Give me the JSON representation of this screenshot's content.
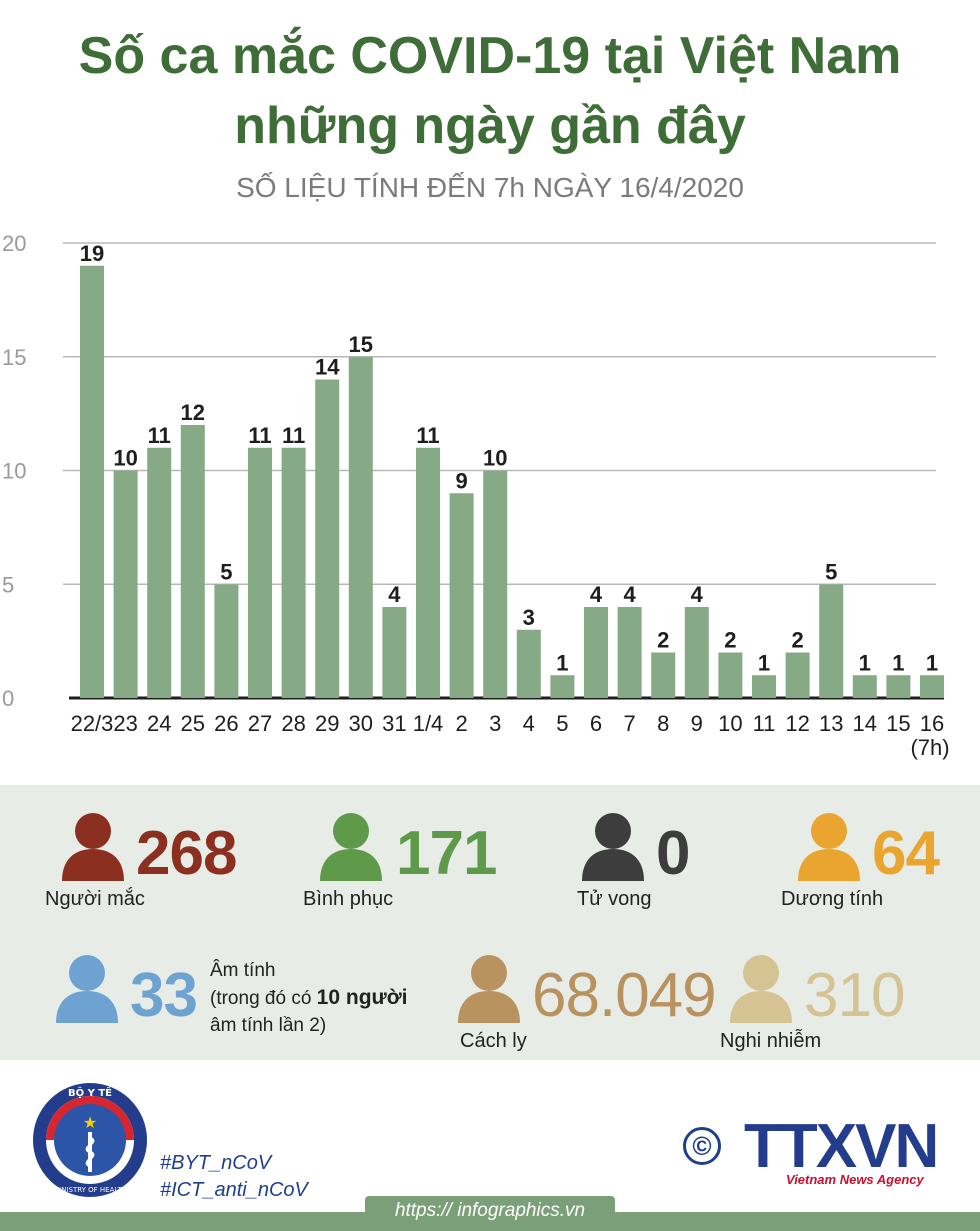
{
  "title_line1": "Số ca mắc COVID-19 tại Việt Nam",
  "title_line2": "những ngày gần đây",
  "subtitle": "SỐ LIỆU TÍNH ĐẾN 7h NGÀY 16/4/2020",
  "chart_data": {
    "type": "bar",
    "title": "Số ca mắc COVID-19 tại Việt Nam những ngày gần đây",
    "categories": [
      "22/3",
      "23",
      "24",
      "25",
      "26",
      "27",
      "28",
      "29",
      "30",
      "31",
      "1/4",
      "2",
      "3",
      "4",
      "5",
      "6",
      "7",
      "8",
      "9",
      "10",
      "11",
      "12",
      "13",
      "14",
      "15",
      "16"
    ],
    "last_category_note": "(7h)",
    "values": [
      19,
      10,
      11,
      12,
      5,
      11,
      11,
      14,
      15,
      4,
      11,
      9,
      10,
      3,
      1,
      4,
      4,
      2,
      4,
      2,
      1,
      2,
      5,
      1,
      1,
      1
    ],
    "ylim": [
      0,
      20
    ],
    "yticks": [
      0,
      5,
      10,
      15,
      20
    ],
    "grid": true,
    "bar_color": "#87aa86"
  },
  "stats": [
    {
      "value": "268",
      "label": "Người mắc",
      "color": "#8b3021"
    },
    {
      "value": "171",
      "label": "Bình phục",
      "color": "#5f9a4a"
    },
    {
      "value": "0",
      "label": "Tử vong",
      "color": "#3d3d3d"
    },
    {
      "value": "64",
      "label": "Dương tính",
      "color": "#e9a530"
    },
    {
      "value": "33",
      "label": "Âm tính",
      "color": "#6ea3d1"
    },
    {
      "value": "68.049",
      "label": "Cách ly",
      "color": "#b8925f"
    },
    {
      "value": "310",
      "label": "Nghi nhiễm",
      "color": "#d6c394"
    }
  ],
  "negative_note": {
    "pre": "(trong đó có ",
    "bold": "10 người",
    "post": "âm tính lần 2)"
  },
  "logo": {
    "moh_top": "BỘ Y TẾ",
    "moh_bottom": "MINISTRY OF HEALTH",
    "ttxvn": "TTXVN",
    "vna": "Vietnam News Agency",
    "copyright": "©"
  },
  "hashtags": [
    "#BYT_nCoV",
    "#ICT_anti_nCoV"
  ],
  "footer_url": "https:// infographics.vn"
}
